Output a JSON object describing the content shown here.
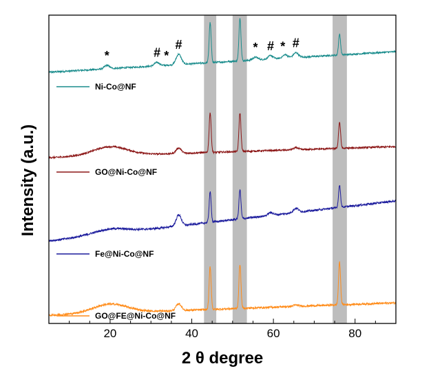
{
  "chart_data": {
    "type": "line",
    "xlabel": "2 θ degree",
    "ylabel": "Intensity (a.u.)",
    "xlim": [
      5,
      90
    ],
    "xticks": [
      20,
      40,
      60,
      80
    ],
    "grid": false,
    "y_tick_labels": false,
    "highlight_bands_2theta": [
      [
        43,
        46
      ],
      [
        50,
        53.5
      ],
      [
        74.5,
        78
      ]
    ],
    "series": [
      {
        "name": "Ni-Co@NF",
        "color": "#1a8c8c",
        "baseline_start": 0.0,
        "baseline_end": 0.3,
        "hump": 0.0,
        "noise": 0.012,
        "peaks": [
          [
            19.2,
            0.05
          ],
          [
            31.5,
            0.05
          ],
          [
            36.8,
            0.15
          ],
          [
            44.5,
            0.58
          ],
          [
            51.8,
            0.62
          ],
          [
            55.6,
            0.04
          ],
          [
            59.3,
            0.05
          ],
          [
            62.9,
            0.05
          ],
          [
            65.5,
            0.07
          ],
          [
            76.2,
            0.3
          ]
        ]
      },
      {
        "name": "GO@Ni-Co@NF",
        "color": "#8b1515",
        "baseline_start": 0.0,
        "baseline_end": 0.16,
        "hump": 0.13,
        "noise": 0.012,
        "peaks": [
          [
            36.8,
            0.08
          ],
          [
            44.5,
            0.58
          ],
          [
            51.8,
            0.56
          ],
          [
            65.5,
            0.03
          ],
          [
            76.2,
            0.38
          ]
        ]
      },
      {
        "name": "Fe@Ni-Co@NF",
        "color": "#1a1a9c",
        "baseline_start": 0.0,
        "baseline_end": 0.58,
        "hump": 0.07,
        "noise": 0.014,
        "peaks": [
          [
            36.8,
            0.16
          ],
          [
            44.5,
            0.44
          ],
          [
            51.8,
            0.42
          ],
          [
            59.3,
            0.04
          ],
          [
            65.5,
            0.06
          ],
          [
            76.2,
            0.32
          ]
        ]
      },
      {
        "name": "GO@FE@Ni-Co@NF",
        "color": "#ff8c1a",
        "baseline_start": 0.0,
        "baseline_end": 0.18,
        "hump": 0.13,
        "noise": 0.014,
        "peaks": [
          [
            36.8,
            0.1
          ],
          [
            44.5,
            0.62
          ],
          [
            51.8,
            0.64
          ],
          [
            65.5,
            0.02
          ],
          [
            76.2,
            0.62
          ]
        ]
      }
    ],
    "annotations": [
      {
        "text": "*",
        "x": 19.2,
        "series": 0
      },
      {
        "text": "#",
        "x": 31.5,
        "series": 0
      },
      {
        "text": "*",
        "x": 33.8,
        "series": 0
      },
      {
        "text": "#",
        "x": 36.8,
        "series": 0
      },
      {
        "text": "*",
        "x": 55.6,
        "series": 0
      },
      {
        "text": "#",
        "x": 59.3,
        "series": 0
      },
      {
        "text": "*",
        "x": 62.3,
        "series": 0
      },
      {
        "text": "#",
        "x": 65.5,
        "series": 0
      }
    ]
  }
}
